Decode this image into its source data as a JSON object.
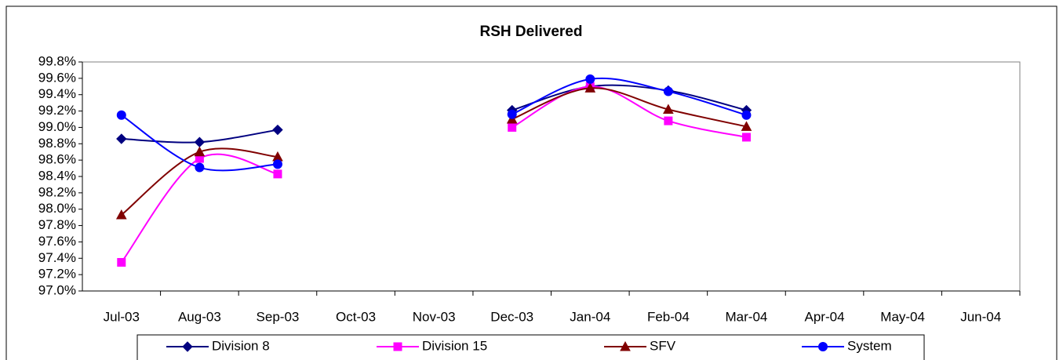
{
  "chart_data": {
    "type": "line",
    "title": "RSH Delivered",
    "categories": [
      "Jul-03",
      "Aug-03",
      "Sep-03",
      "Oct-03",
      "Nov-03",
      "Dec-03",
      "Jan-04",
      "Feb-04",
      "Mar-04",
      "Apr-04",
      "May-04",
      "Jun-04"
    ],
    "series": [
      {
        "name": "Division 8",
        "color": "#000080",
        "marker": "diamond",
        "values": [
          98.86,
          98.82,
          98.97,
          null,
          null,
          99.21,
          99.5,
          99.45,
          99.21,
          null,
          null,
          null
        ]
      },
      {
        "name": "Division 15",
        "color": "#ff00ff",
        "marker": "square",
        "values": [
          97.35,
          98.62,
          98.43,
          null,
          null,
          99.0,
          99.5,
          99.08,
          98.88,
          null,
          null,
          null
        ]
      },
      {
        "name": "SFV",
        "color": "#800000",
        "marker": "triangle",
        "values": [
          97.93,
          98.7,
          98.64,
          null,
          null,
          99.1,
          99.48,
          99.22,
          99.01,
          null,
          null,
          null
        ]
      },
      {
        "name": "System",
        "color": "#0000ff",
        "marker": "circle",
        "values": [
          99.15,
          98.51,
          98.55,
          null,
          null,
          99.16,
          99.59,
          99.44,
          99.15,
          null,
          null,
          null
        ]
      }
    ],
    "ylim": [
      97.0,
      99.8
    ],
    "yticks": [
      {
        "value": 97.0,
        "label": "97.0%"
      },
      {
        "value": 97.2,
        "label": "97.2%"
      },
      {
        "value": 97.4,
        "label": "97.4%"
      },
      {
        "value": 97.6,
        "label": "97.6%"
      },
      {
        "value": 97.8,
        "label": "97.8%"
      },
      {
        "value": 98.0,
        "label": "98.0%"
      },
      {
        "value": 98.2,
        "label": "98.2%"
      },
      {
        "value": 98.4,
        "label": "98.4%"
      },
      {
        "value": 98.6,
        "label": "98.6%"
      },
      {
        "value": 98.8,
        "label": "98.8%"
      },
      {
        "value": 99.0,
        "label": "99.0%"
      },
      {
        "value": 99.2,
        "label": "99.2%"
      },
      {
        "value": 99.4,
        "label": "99.4%"
      },
      {
        "value": 99.6,
        "label": "99.6%"
      },
      {
        "value": 99.8,
        "label": "99.8%"
      }
    ],
    "grid": false,
    "smooth": true,
    "legend": "bottom"
  }
}
